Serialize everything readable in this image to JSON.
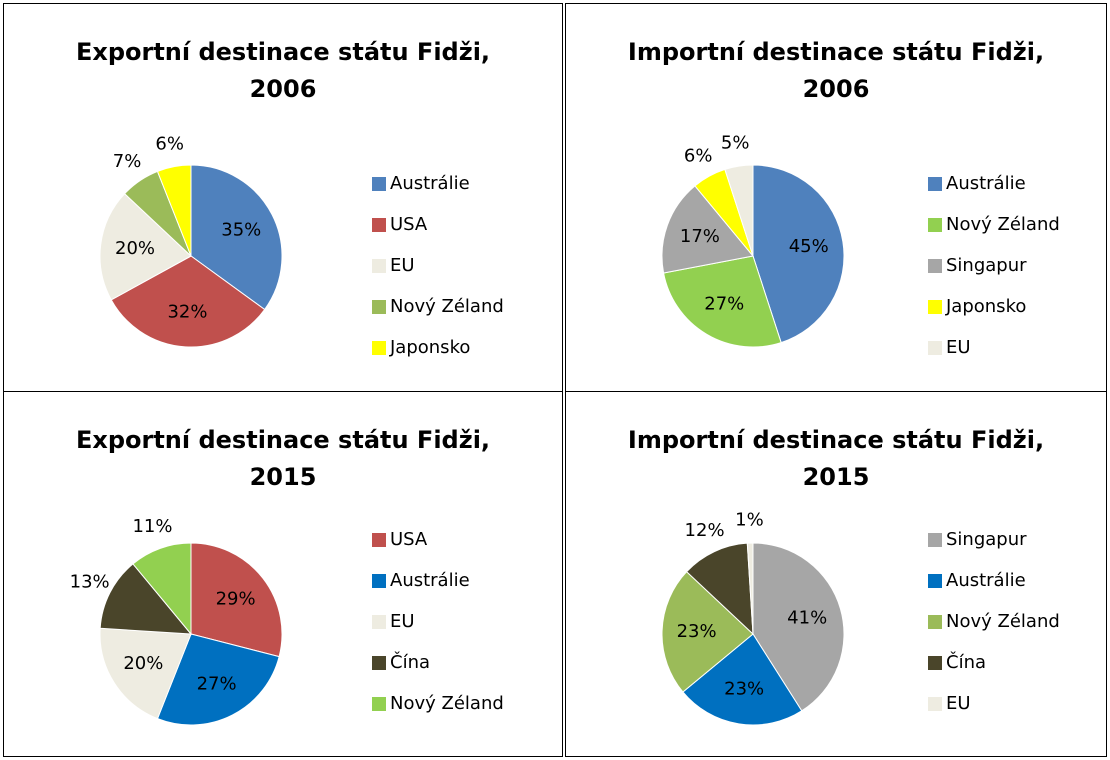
{
  "chart_data": [
    {
      "type": "pie",
      "title": "Exportní destinace státu Fidži, 2006",
      "categories": [
        "Austrálie",
        "USA",
        "EU",
        "Nový Zéland",
        "Japonsko"
      ],
      "values": [
        35,
        32,
        20,
        7,
        6
      ],
      "value_labels": [
        "35%",
        "32%",
        "20%",
        "7%",
        "6%"
      ],
      "colors": [
        "#4f81bd",
        "#c0504d",
        "#eeece1",
        "#9bbb59",
        "#ffff00"
      ],
      "legend": "right"
    },
    {
      "type": "pie",
      "title": "Importní destinace státu Fidži, 2006",
      "categories": [
        "Austrálie",
        "Nový Zéland",
        "Singapur",
        "Japonsko",
        "EU"
      ],
      "values": [
        45,
        27,
        17,
        6,
        5
      ],
      "value_labels": [
        "45%",
        "27%",
        "17%",
        "6%",
        "5%"
      ],
      "colors": [
        "#4f81bd",
        "#92d050",
        "#a6a6a6",
        "#ffff00",
        "#eeece1"
      ],
      "legend": "right"
    },
    {
      "type": "pie",
      "title": "Exportní destinace státu Fidži, 2015",
      "categories": [
        "USA",
        "Austrálie",
        "EU",
        "Čína",
        "Nový Zéland"
      ],
      "values": [
        29,
        27,
        20,
        13,
        11
      ],
      "value_labels": [
        "29%",
        "27%",
        "20%",
        "13%",
        "11%"
      ],
      "colors": [
        "#c0504d",
        "#0070c0",
        "#eeece1",
        "#4a452a",
        "#92d050"
      ],
      "legend": "right"
    },
    {
      "type": "pie",
      "title": "Importní destinace státu Fidži, 2015",
      "categories": [
        "Singapur",
        "Austrálie",
        "Nový Zéland",
        "Čína",
        "EU"
      ],
      "values": [
        41,
        23,
        23,
        12,
        1
      ],
      "value_labels": [
        "41%",
        "23%",
        "23%",
        "12%",
        "1%"
      ],
      "colors": [
        "#a6a6a6",
        "#0070c0",
        "#9bbb59",
        "#4a452a",
        "#eeece1"
      ],
      "legend": "right"
    }
  ]
}
